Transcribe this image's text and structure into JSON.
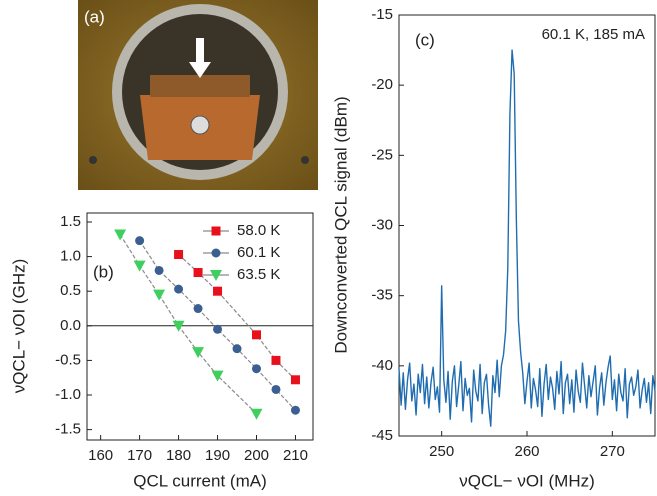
{
  "photo": {
    "label": "(a)"
  },
  "chart_data": [
    {
      "type": "scatter",
      "label": "(b)",
      "xlabel": "QCL current (mA)",
      "ylabel": "νQCL− νOI (GHz)",
      "xlim": [
        156.5,
        214.5
      ],
      "xticks": [
        160,
        170,
        180,
        190,
        200,
        210
      ],
      "ylim": [
        -1.65,
        1.63
      ],
      "yticks": [
        -1.5,
        {
          "value": -1,
          "label": "-1.0"
        },
        -0.5,
        {
          "value": 0,
          "label": "0.0"
        },
        0.5,
        {
          "value": 1,
          "label": "1.0"
        },
        1.5
      ],
      "reference_line": 0,
      "fit_line_color": "#8a8a8a",
      "series": [
        {
          "name": "58.0 K",
          "color": "#e8101a",
          "marker": "square",
          "x": [
            180,
            185,
            190,
            200,
            205,
            210
          ],
          "values": [
            1.03,
            0.77,
            0.5,
            -0.13,
            -0.5,
            -0.78
          ]
        },
        {
          "name": "60.1 K",
          "color": "#3c5f92",
          "marker": "circle",
          "x": [
            170,
            175,
            180,
            185,
            190,
            195,
            200,
            205,
            210
          ],
          "values": [
            1.23,
            0.8,
            0.53,
            0.25,
            -0.05,
            -0.33,
            -0.62,
            -0.92,
            -1.22
          ]
        },
        {
          "name": "63.5 K",
          "color": "#3fcf5e",
          "marker": "triangle",
          "x": [
            165,
            170,
            175,
            180,
            185,
            190,
            200
          ],
          "values": [
            1.32,
            0.87,
            0.45,
            0.0,
            -0.38,
            -0.72,
            -1.27
          ]
        }
      ]
    },
    {
      "type": "line",
      "label": "(c)",
      "annotation": "60.1 K, 185 mA",
      "xlabel": "νQCL− νOI (MHz)",
      "ylabel": "Downconverted QCL signal (dBm)",
      "xlim": [
        245,
        275
      ],
      "xticks": [
        250,
        260,
        270
      ],
      "ylim": [
        -45,
        -15
      ],
      "yticks": [
        -45,
        -40,
        -35,
        -30,
        -25,
        -20,
        -15
      ],
      "series": [
        {
          "name": null,
          "color": "#1f6db0",
          "x": [
            245,
            245.25,
            245.5,
            245.75,
            246,
            246.25,
            246.5,
            246.75,
            247,
            247.25,
            247.5,
            247.75,
            248,
            248.25,
            248.5,
            248.75,
            249,
            249.25,
            249.5,
            249.75,
            250,
            250.25,
            250.5,
            250.75,
            251,
            251.25,
            251.5,
            251.75,
            252,
            252.25,
            252.5,
            252.75,
            253,
            253.25,
            253.5,
            253.75,
            254,
            254.25,
            254.5,
            254.75,
            255,
            255.25,
            255.5,
            255.75,
            256,
            256.25,
            256.5,
            256.75,
            257,
            257.25,
            257.5,
            257.75,
            258,
            258.25,
            258.5,
            258.75,
            259,
            259.25,
            259.5,
            259.75,
            260,
            260.25,
            260.5,
            260.75,
            261,
            261.25,
            261.5,
            261.75,
            262,
            262.25,
            262.5,
            262.75,
            263,
            263.25,
            263.5,
            263.75,
            264,
            264.25,
            264.5,
            264.75,
            265,
            265.25,
            265.5,
            265.75,
            266,
            266.25,
            266.5,
            266.75,
            267,
            267.25,
            267.5,
            267.75,
            268,
            268.25,
            268.5,
            268.75,
            269,
            269.25,
            269.5,
            269.75,
            270,
            270.25,
            270.5,
            270.75,
            271,
            271.25,
            271.5,
            271.75,
            272,
            272.25,
            272.5,
            272.75,
            273,
            273.25,
            273.5,
            273.75,
            274,
            274.25,
            274.5,
            274.75,
            275
          ],
          "values": [
            -40.2,
            -42.8,
            -40.5,
            -43.1,
            -41.0,
            -39.8,
            -42.5,
            -41.3,
            -43.5,
            -40.6,
            -41.9,
            -39.9,
            -42.7,
            -40.8,
            -43.0,
            -41.2,
            -40.1,
            -42.4,
            -41.5,
            -43.3,
            -34.3,
            -41.0,
            -42.6,
            -40.4,
            -43.8,
            -41.1,
            -40.0,
            -42.9,
            -41.4,
            -39.7,
            -43.2,
            -40.9,
            -42.1,
            -41.6,
            -44.0,
            -40.3,
            -41.8,
            -42.5,
            -39.9,
            -43.4,
            -41.2,
            -40.6,
            -42.8,
            -44.3,
            -40.7,
            -41.9,
            -39.6,
            -42.2,
            -40.0,
            -39.2,
            -37.5,
            -33.0,
            -22.0,
            -17.5,
            -19.2,
            -29.5,
            -36.8,
            -39.0,
            -40.5,
            -42.7,
            -41.1,
            -39.8,
            -43.0,
            -40.9,
            -41.7,
            -42.9,
            -40.2,
            -43.6,
            -41.3,
            -39.9,
            -42.4,
            -40.8,
            -41.6,
            -43.1,
            -40.4,
            -42.0,
            -39.7,
            -43.4,
            -41.2,
            -40.6,
            -42.7,
            -41.0,
            -43.3,
            -40.3,
            -41.8,
            -42.6,
            -39.8,
            -41.4,
            -43.0,
            -40.7,
            -42.2,
            -41.1,
            -40.0,
            -43.5,
            -41.6,
            -40.5,
            -42.8,
            -41.2,
            -40.1,
            -39.3,
            -42.4,
            -41.0,
            -43.2,
            -40.6,
            -41.9,
            -42.5,
            -40.2,
            -43.7,
            -41.3,
            -40.8,
            -42.1,
            -41.5,
            -40.3,
            -43.0,
            -41.7,
            -40.9,
            -42.6,
            -41.2,
            -43.4,
            -40.7,
            -41.8
          ]
        }
      ]
    }
  ]
}
